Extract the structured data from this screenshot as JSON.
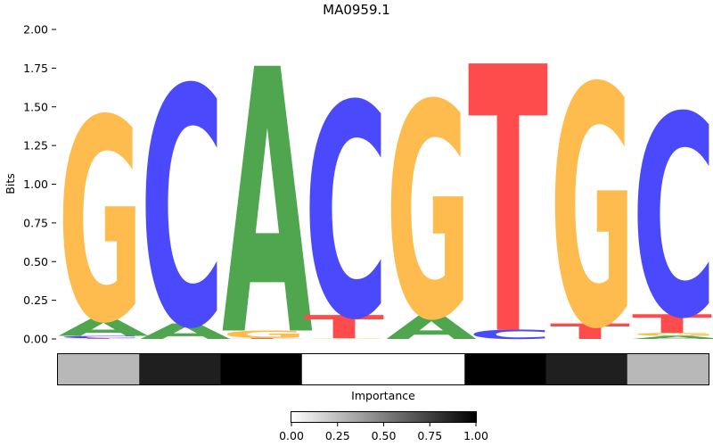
{
  "chart_data": [
    {
      "type": "sequence-logo",
      "title": "MA0959.1",
      "ylabel": "Bits",
      "ylim": [
        0,
        2.0
      ],
      "yticks": [
        "0.00",
        "0.25",
        "0.50",
        "0.75",
        "1.00",
        "1.25",
        "1.50",
        "1.75",
        "2.00"
      ],
      "letter_colors": {
        "A": "#4fa64f",
        "C": "#4a4afc",
        "G": "#fdbc4d",
        "T": "#fe4c4c"
      },
      "positions": [
        {
          "index": 1,
          "stack": [
            {
              "letter": "T",
              "bits": 0.005
            },
            {
              "letter": "C",
              "bits": 0.015
            },
            {
              "letter": "A",
              "bits": 0.11
            },
            {
              "letter": "G",
              "bits": 1.31
            }
          ]
        },
        {
          "index": 2,
          "stack": [
            {
              "letter": "A",
              "bits": 0.1
            },
            {
              "letter": "C",
              "bits": 1.54
            }
          ]
        },
        {
          "index": 3,
          "stack": [
            {
              "letter": "T",
              "bits": 0.005
            },
            {
              "letter": "G",
              "bits": 0.05
            },
            {
              "letter": "A",
              "bits": 1.71
            }
          ]
        },
        {
          "index": 4,
          "stack": [
            {
              "letter": "G",
              "bits": 0.005
            },
            {
              "letter": "T",
              "bits": 0.15
            },
            {
              "letter": "C",
              "bits": 1.38
            }
          ]
        },
        {
          "index": 5,
          "stack": [
            {
              "letter": "A",
              "bits": 0.15
            },
            {
              "letter": "G",
              "bits": 1.39
            }
          ]
        },
        {
          "index": 6,
          "stack": [
            {
              "letter": "C",
              "bits": 0.06
            },
            {
              "letter": "T",
              "bits": 1.72
            }
          ]
        },
        {
          "index": 7,
          "stack": [
            {
              "letter": "T",
              "bits": 0.1
            },
            {
              "letter": "G",
              "bits": 1.55
            }
          ]
        },
        {
          "index": 8,
          "stack": [
            {
              "letter": "A",
              "bits": 0.02
            },
            {
              "letter": "G",
              "bits": 0.02
            },
            {
              "letter": "T",
              "bits": 0.12
            },
            {
              "letter": "C",
              "bits": 1.3
            }
          ]
        }
      ]
    },
    {
      "type": "heatmap",
      "xlabel": "Importance",
      "values": [
        0.28,
        0.88,
        1.0,
        0.0,
        0.0,
        1.0,
        0.88,
        0.28
      ],
      "colormap": [
        "#ffffff",
        "#000000"
      ],
      "colorbar": {
        "range": [
          0,
          1
        ],
        "ticks": [
          "0.00",
          "0.25",
          "0.50",
          "0.75",
          "1.00"
        ]
      }
    }
  ]
}
